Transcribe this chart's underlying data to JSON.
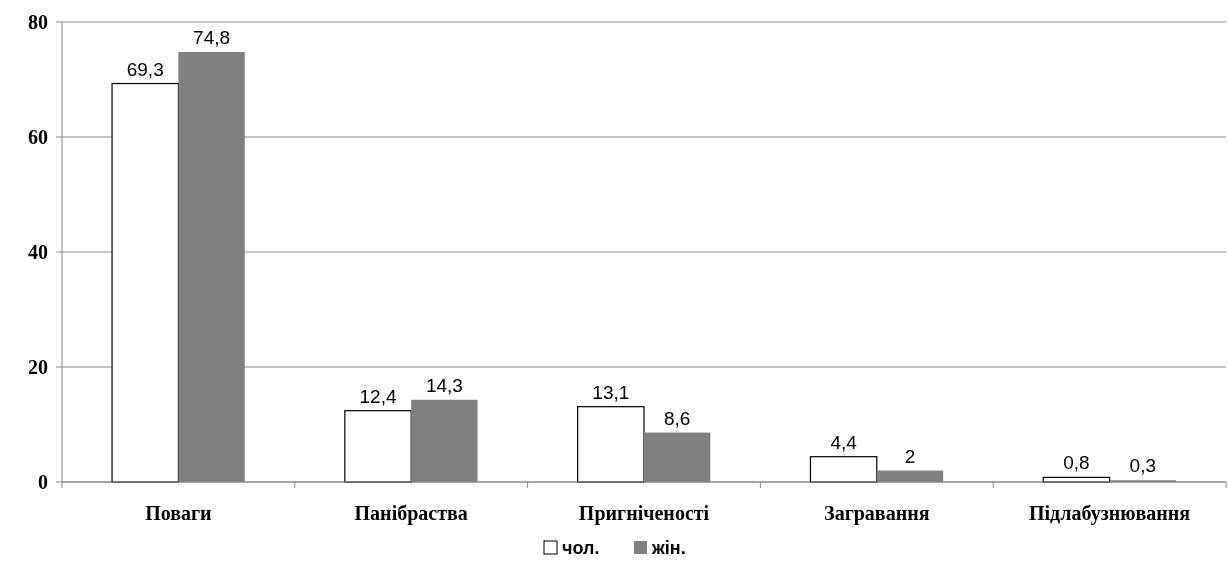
{
  "chart_data": {
    "type": "bar",
    "categories": [
      "Поваги",
      "Панібраства",
      "Пригніченості",
      "Загравання",
      "Підлабузнювання"
    ],
    "series": [
      {
        "name": "чол.",
        "color": "#ffffff",
        "values": [
          69.3,
          12.4,
          13.1,
          4.4,
          0.8
        ],
        "value_labels": [
          "69,3",
          "12,4",
          "13,1",
          "4,4",
          "0,8"
        ]
      },
      {
        "name": "жін.",
        "color": "#808080",
        "values": [
          74.8,
          14.3,
          8.6,
          2,
          0.3
        ],
        "value_labels": [
          "74,8",
          "14,3",
          "8,6",
          "2",
          "0,3"
        ]
      }
    ],
    "ylim": [
      0,
      80
    ],
    "yticks": [
      0,
      20,
      40,
      60,
      80
    ],
    "grid": "y",
    "legend": "bottom"
  }
}
